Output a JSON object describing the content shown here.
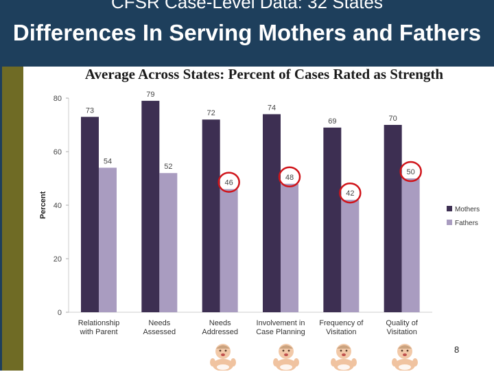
{
  "header": {
    "title_top": "CFSR Case-Level Data: 32 States",
    "title_main": "Differences In Serving Mothers and Fathers"
  },
  "subtitle": "Average Across States: Percent of Cases Rated as Strength",
  "page_number": "8",
  "colors": {
    "header_bg": "#1e3f5c",
    "sidebar": "#6f6b25",
    "mothers": "#3d2f52",
    "fathers": "#a99cc0",
    "highlight_circle": "#d0141a"
  },
  "decorations": [
    "baby-icon",
    "baby-icon",
    "baby-icon",
    "baby-icon"
  ],
  "chart_data": {
    "type": "bar",
    "categories": [
      "Relationship with Parent",
      "Needs Assessed",
      "Needs Addressed",
      "Involvement in Case Planning",
      "Frequency of Visitation",
      "Quality of Visitation"
    ],
    "category_lines": [
      [
        "Relationship",
        "with Parent"
      ],
      [
        "Needs",
        "Assessed"
      ],
      [
        "Needs",
        "Addressed"
      ],
      [
        "Involvement in",
        "Case Planning"
      ],
      [
        "Frequency of",
        "Visitation"
      ],
      [
        "Quality of",
        "Visitation"
      ]
    ],
    "series": [
      {
        "name": "Mothers",
        "values": [
          73,
          79,
          72,
          74,
          69,
          70
        ]
      },
      {
        "name": "Fathers",
        "values": [
          54,
          52,
          46,
          48,
          42,
          50
        ]
      }
    ],
    "ylabel": "Percent",
    "ylim": [
      0,
      80
    ],
    "yticks": [
      0,
      20,
      40,
      60,
      80
    ],
    "legend": "right",
    "grid": false,
    "annotations": {
      "circled_series": "Fathers",
      "circled_categories": [
        2,
        3,
        4,
        5
      ]
    }
  }
}
